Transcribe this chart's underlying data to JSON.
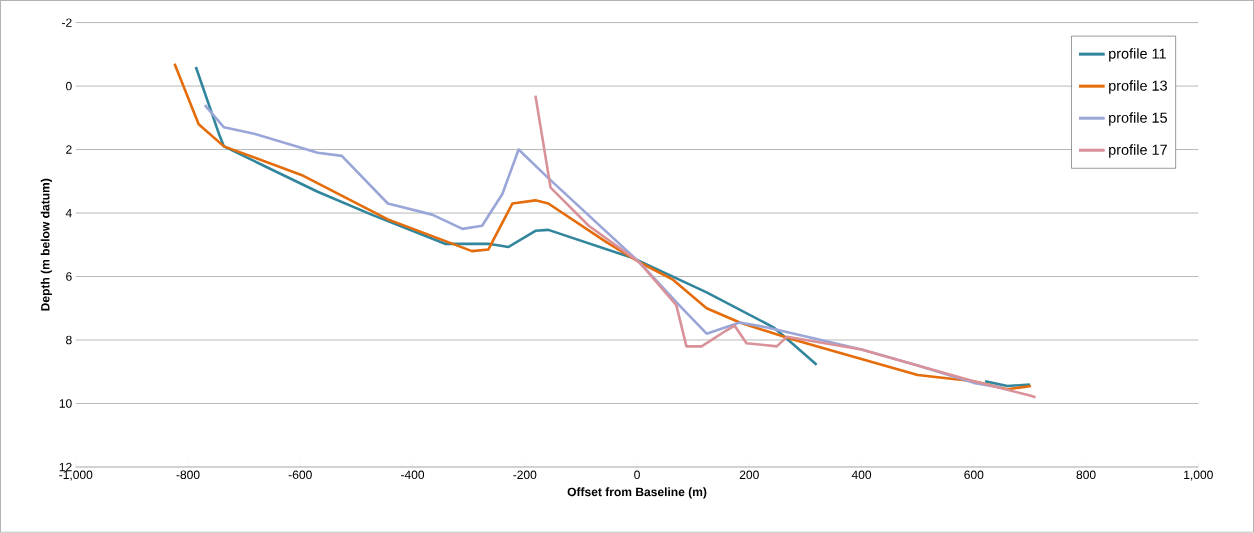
{
  "chart_data": {
    "type": "line",
    "xlabel": "Offset from Baseline (m)",
    "ylabel": "Depth (m below datum)",
    "xlim": [
      -1000,
      1000
    ],
    "xticks": [
      {
        "value": -1000,
        "label": "-1,000"
      },
      -800,
      -600,
      -400,
      -200,
      0,
      200,
      400,
      600,
      800,
      {
        "value": 1000,
        "label": "1,000"
      }
    ],
    "ylim": [
      12,
      -2
    ],
    "yticks": [
      -2,
      0,
      2,
      4,
      6,
      8,
      10,
      12
    ],
    "grid": "y",
    "legend": "top right",
    "marker": "none",
    "line_style": "solid",
    "series": [
      {
        "name": "profile 11",
        "color": "#31859c",
        "x": [
          -786,
          -745,
          -736,
          -569,
          -473,
          -342,
          -265,
          -229,
          -181,
          -158,
          -7,
          124,
          243,
          267,
          320,
          null,
          620,
          660,
          700
        ],
        "values": [
          -0.6,
          1.5,
          1.9,
          3.33,
          4.05,
          4.97,
          4.97,
          5.07,
          4.56,
          4.53,
          5.42,
          6.5,
          7.6,
          7.96,
          8.78,
          null,
          9.3,
          9.45,
          9.4
        ]
      },
      {
        "name": "profile 13",
        "color": "#e46c0a",
        "x": [
          -824,
          -781,
          -736,
          -598,
          -444,
          -294,
          -265,
          -222,
          -181,
          -158,
          -56,
          4,
          64,
          124,
          183,
          272,
          320,
          500,
          600,
          660,
          702
        ],
        "values": [
          -0.7,
          1.2,
          1.9,
          2.8,
          4.2,
          5.2,
          5.15,
          3.7,
          3.6,
          3.7,
          4.9,
          5.55,
          6.1,
          7.0,
          7.45,
          7.95,
          8.2,
          9.1,
          9.3,
          9.55,
          9.45
        ]
      },
      {
        "name": "profile 15",
        "color": "#9aa6d8",
        "x": [
          -770,
          -736,
          -682,
          -569,
          -526,
          -444,
          -365,
          -311,
          -276,
          -240,
          -211,
          -158,
          -115,
          4,
          75,
          124,
          183,
          230,
          280,
          400,
          500,
          600,
          650
        ],
        "values": [
          0.6,
          1.3,
          1.5,
          2.1,
          2.2,
          3.7,
          4.05,
          4.5,
          4.4,
          3.4,
          2.0,
          2.9,
          3.6,
          5.55,
          6.9,
          7.8,
          7.45,
          7.6,
          7.8,
          8.3,
          8.8,
          9.35,
          9.5
        ]
      },
      {
        "name": "profile 17",
        "color": "#d9919a",
        "x": [
          -181,
          -154,
          -86,
          4,
          70,
          88,
          115,
          159,
          174,
          195,
          249,
          267,
          400,
          500,
          600,
          700,
          710
        ],
        "values": [
          0.3,
          3.2,
          4.4,
          5.55,
          6.9,
          8.2,
          8.2,
          7.7,
          7.55,
          8.1,
          8.2,
          7.9,
          8.3,
          8.8,
          9.3,
          9.75,
          9.8
        ]
      }
    ]
  }
}
